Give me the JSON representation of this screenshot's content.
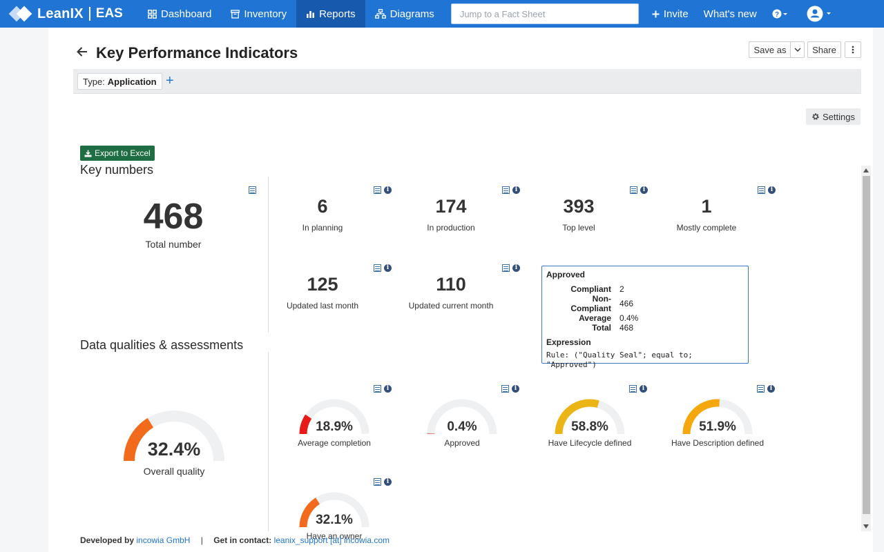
{
  "app": {
    "logo_text": "LeanIX",
    "workspace": "EAS"
  },
  "nav": {
    "items": [
      {
        "label": "Dashboard",
        "icon": "dashboard-icon"
      },
      {
        "label": "Inventory",
        "icon": "inventory-icon"
      },
      {
        "label": "Reports",
        "icon": "reports-icon",
        "active": true
      },
      {
        "label": "Diagrams",
        "icon": "diagrams-icon"
      }
    ],
    "search_placeholder": "Jump to a Fact Sheet",
    "invite": "Invite",
    "whats_new": "What's new"
  },
  "header": {
    "title": "Key Performance Indicators",
    "save_as": "Save as",
    "share": "Share"
  },
  "filter": {
    "type_label": "Type:",
    "type_value": "Application"
  },
  "settings_label": "Settings",
  "report": {
    "export_label": "Export to Excel",
    "key_numbers_title": "Key numbers",
    "total": {
      "value": "468",
      "label": "Total number"
    },
    "kpis": [
      {
        "value": "6",
        "label": "In planning"
      },
      {
        "value": "174",
        "label": "In production"
      },
      {
        "value": "393",
        "label": "Top level"
      },
      {
        "value": "1",
        "label": "Mostly complete"
      },
      {
        "value": "125",
        "label": "Updated last month"
      },
      {
        "value": "110",
        "label": "Updated current month"
      }
    ],
    "quality_title": "Data qualities & assessments",
    "overall": {
      "value": 32.4,
      "text": "32.4%",
      "label": "Overall quality",
      "color": "#f26a1b"
    },
    "gauges": [
      {
        "value": 18.9,
        "text": "18.9%",
        "label": "Average completion",
        "color": "#e81a1a"
      },
      {
        "value": 0.4,
        "text": "0.4%",
        "label": "Approved",
        "color": "#e81a1a"
      },
      {
        "value": 58.8,
        "text": "58.8%",
        "label": "Have Lifecycle defined",
        "color": "#ebb517"
      },
      {
        "value": 51.9,
        "text": "51.9%",
        "label": "Have Description defined",
        "color": "#f5a70e"
      },
      {
        "value": 32.1,
        "text": "32.1%",
        "label": "Have an owner",
        "color": "#f26a1b"
      }
    ],
    "tooltip": {
      "title": "Approved",
      "rows": [
        {
          "k": "Compliant",
          "v": "2"
        },
        {
          "k": "Non-Compliant",
          "v": "466"
        },
        {
          "k": "Average",
          "v": "0.4%"
        },
        {
          "k": "Total",
          "v": "468"
        }
      ],
      "expression_title": "Expression",
      "rule": "Rule: (\"Quality Seal\"; equal to; \"Approved\")"
    }
  },
  "footer": {
    "developed_by": "Developed by",
    "company": "incowia GmbH",
    "sep": "|",
    "contact_label": "Get in contact:",
    "contact": "leanix_support [at] incowia.com"
  },
  "colors": {
    "brand": "#1f74d4",
    "excel": "#1f6e43"
  }
}
